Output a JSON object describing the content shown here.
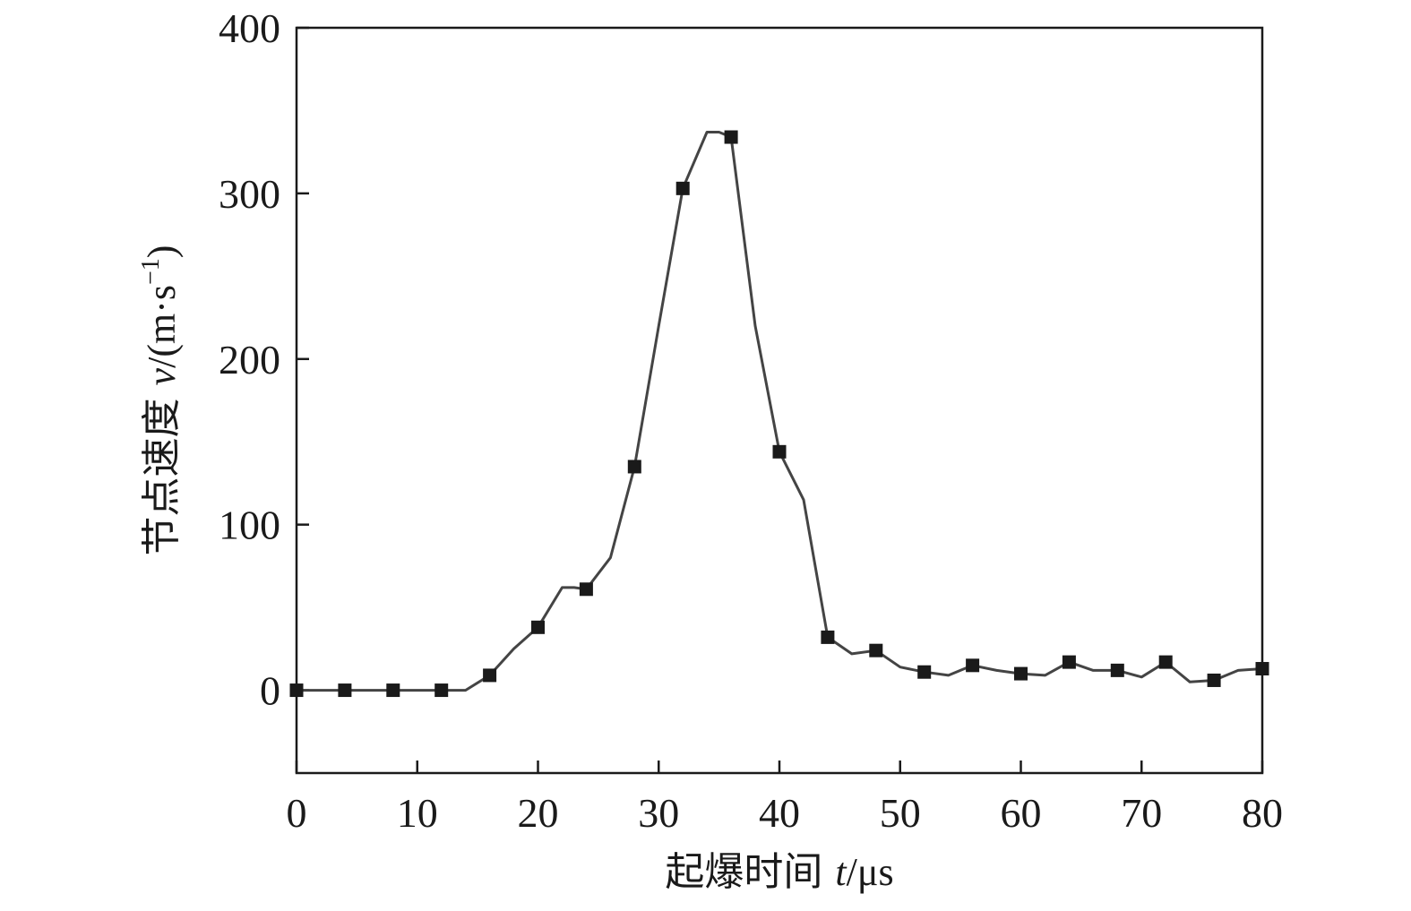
{
  "chart_data": {
    "type": "line",
    "title": "",
    "xlabel": {
      "prefix": "起爆时间 ",
      "symbol": "t",
      "unit": "/μs"
    },
    "ylabel": {
      "prefix": "节点速度 ",
      "symbol": "v",
      "unit_base": "/(m·s",
      "unit_sup": "−1",
      "unit_close": ")"
    },
    "xlim": [
      0,
      80
    ],
    "ylim": [
      -50,
      400
    ],
    "x_ticks": [
      0,
      10,
      20,
      30,
      40,
      50,
      60,
      70,
      80
    ],
    "y_ticks": [
      0,
      100,
      200,
      300,
      400
    ],
    "grid": false,
    "legend": "none",
    "line_color": "#444444",
    "marker_color": "#1a1a1a",
    "series": [
      {
        "line_x": [
          0,
          4,
          8,
          12,
          14,
          16,
          18,
          20,
          22,
          23,
          24,
          26,
          28,
          30,
          32,
          34,
          35,
          36,
          38,
          40,
          42,
          44,
          46,
          48,
          50,
          52,
          54,
          56,
          58,
          60,
          62,
          64,
          66,
          68,
          70,
          72,
          74,
          76,
          78,
          80
        ],
        "line_y": [
          0,
          0,
          0,
          0,
          0,
          9,
          25,
          38,
          62,
          62,
          61,
          80,
          135,
          220,
          303,
          337,
          337,
          334,
          220,
          144,
          115,
          32,
          22,
          24,
          14,
          11,
          9,
          15,
          12,
          10,
          9,
          17,
          12,
          12,
          8,
          17,
          5,
          6,
          12,
          13
        ],
        "marker_x": [
          0,
          4,
          8,
          12,
          16,
          20,
          24,
          28,
          32,
          36,
          40,
          44,
          48,
          52,
          56,
          60,
          64,
          68,
          72,
          76,
          80
        ],
        "marker_y": [
          0,
          0,
          0,
          0,
          9,
          38,
          61,
          135,
          303,
          334,
          144,
          32,
          24,
          11,
          15,
          10,
          17,
          12,
          17,
          6,
          13
        ]
      }
    ]
  }
}
